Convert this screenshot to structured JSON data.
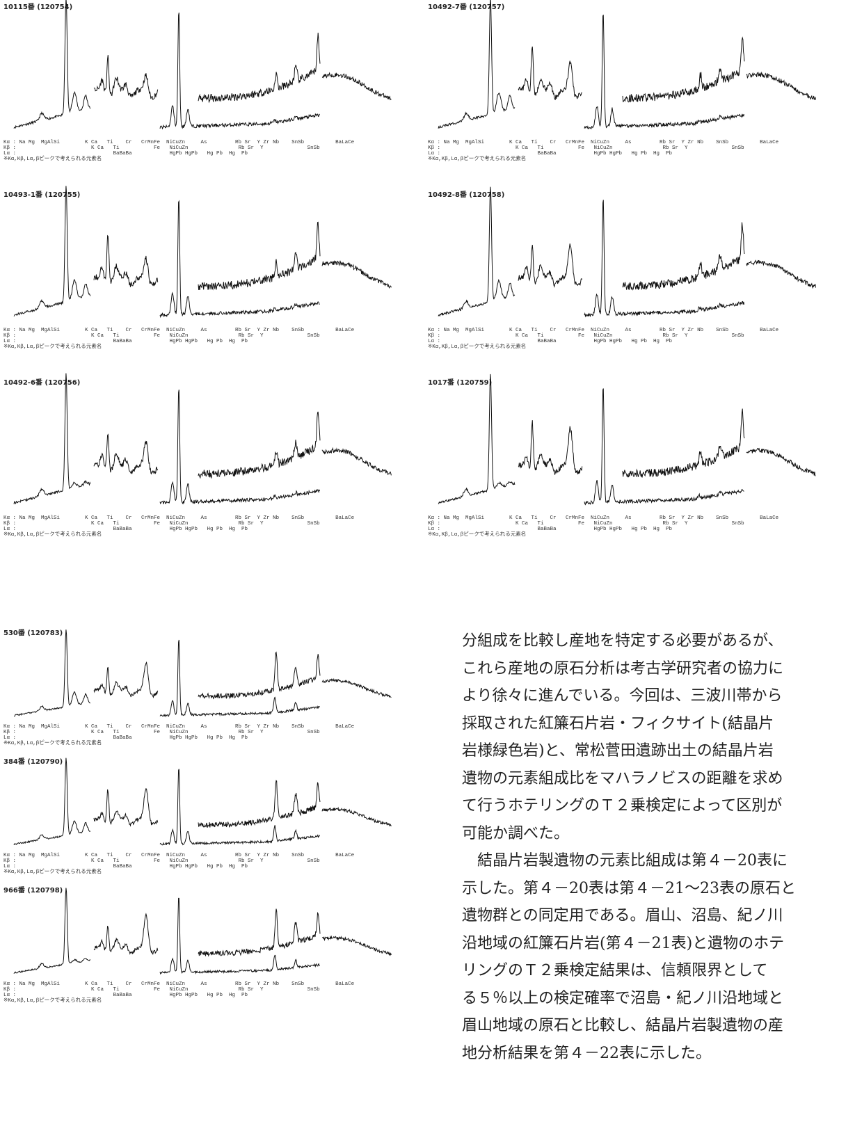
{
  "figures": [
    {
      "title": "10115番 (120754)"
    },
    {
      "title": "10493-1番 (120755)"
    },
    {
      "title": "10492-6番 (120756)"
    },
    {
      "title": "10492-7番 (120757)"
    },
    {
      "title": "10492-8番 (120758)"
    },
    {
      "title": "1017番 (120759)"
    },
    {
      "title": "530番 (120783)"
    },
    {
      "title": "384番 (120790)"
    },
    {
      "title": "966番 (120798)"
    }
  ],
  "spectrum_labels": [
    "Kα : Na Mg  MgAlSi        K Ca   Ti    Cr   CrMnFe  NiCuZn     As         Rb Sr  Y Zr Nb    SnSb          BaLaCe",
    "Kβ :                        K Ca   Ti           Fe   NiCuZn                Rb Sr  Y              SnSb",
    "Lα :                               BaBaBa            HgPb HgPb   Hg Pb  Hg  Pb",
    "※Kα,Kβ,Lα,βピークで考えられる元素名"
  ],
  "body_text": {
    "lines": [
      "分組成を比較し産地を特定する必要があるが、",
      "これら産地の原石分析は考古学研究者の協力に",
      "より徐々に進んでいる。今回は、三波川帯から",
      "採取された紅簾石片岩・フィクサイト(結晶片",
      "岩様緑色岩)と、常松菅田遺跡出土の結晶片岩",
      "遺物の元素組成比をマハラノビスの距離を求め",
      "て行うホテリングのＴ２乗検定によって区別が",
      "可能か調べた。",
      "　結晶片岩製遺物の元素比組成は第４－20表に",
      "示した。第４－20表は第４－21～23表の原石と",
      "遺物群との同定用である。眉山、沼島、紀ノ川",
      "沿地域の紅簾石片岩(第４－21表)と遺物のホテ",
      "リングのＴ２乗検定結果は、信頼限界として",
      "る５％以上の検定確率で沼島・紀ノ川沿地域と",
      "眉山地域の原石と比較し、結晶片岩製遺物の産",
      "地分析結果を第４－22表に示した。"
    ]
  }
}
